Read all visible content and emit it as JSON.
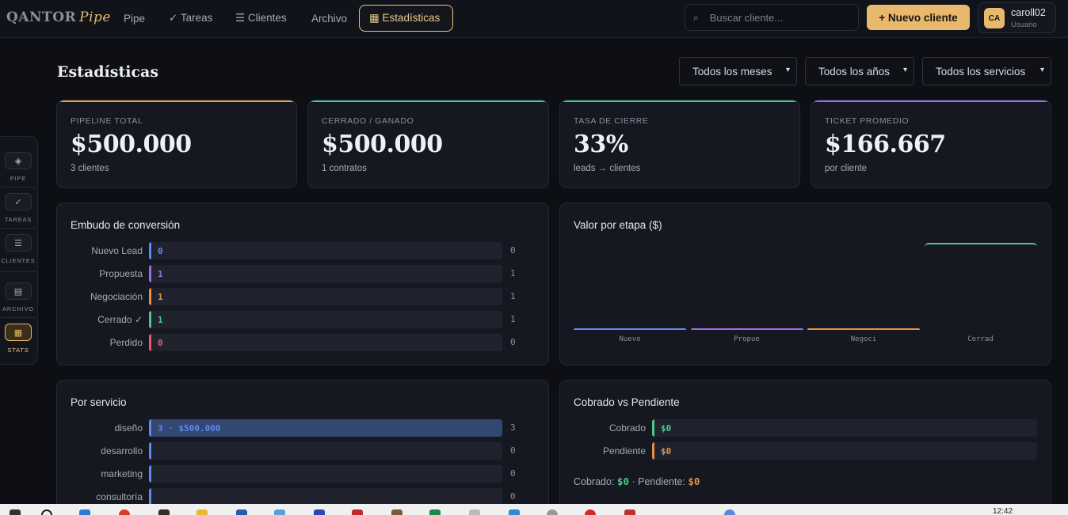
{
  "header": {
    "logo_main": "QANTOR",
    "logo_sub": "Pipe",
    "nav": [
      {
        "label": "Pipe"
      },
      {
        "label": "✓ Tareas"
      },
      {
        "label": "☰ Clientes"
      },
      {
        "label": "Archivo"
      },
      {
        "label": "▦ Estadísticas"
      }
    ],
    "search_placeholder": "Buscar cliente...",
    "new_button": "+ Nuevo cliente",
    "user": {
      "initials": "CA",
      "name": "caroll02",
      "role": "Usuario"
    }
  },
  "sidebar": {
    "items": [
      {
        "label": "PIPE",
        "icon": "◈"
      },
      {
        "label": "TAREAS",
        "icon": "✓"
      },
      {
        "label": "CLIENTES",
        "icon": "☰"
      },
      {
        "label": "ARCHIVO",
        "icon": "▤"
      },
      {
        "label": "STATS",
        "icon": "▦"
      }
    ]
  },
  "page": {
    "title": "Estadísticas",
    "filters": [
      {
        "value": "Todos los meses"
      },
      {
        "value": "Todos los años"
      },
      {
        "value": "Todos los servicios"
      }
    ]
  },
  "kpis": [
    {
      "label": "PIPELINE TOTAL",
      "value": "$500.000",
      "sub": "3 clientes",
      "color": "#e8a04a"
    },
    {
      "label": "CERRADO / GANADO",
      "value": "$500.000",
      "sub": "1 contratos",
      "color": "#3ec9a0"
    },
    {
      "label": "TASA DE CIERRE",
      "value": "33%",
      "sub": "leads → clientes",
      "color": "#3ec98a"
    },
    {
      "label": "TICKET PROMEDIO",
      "value": "$166.667",
      "sub": "por cliente",
      "color": "#9a6ee8"
    }
  ],
  "funnel": {
    "title": "Embudo de conversión",
    "rows": [
      {
        "label": "Nuevo Lead",
        "inner": "0",
        "count": "0",
        "fraction": 0,
        "color": "#5a8cf0"
      },
      {
        "label": "Propuesta",
        "inner": "1",
        "count": "1",
        "fraction": 0,
        "color": "#9a6ee8"
      },
      {
        "label": "Negociación",
        "inner": "1",
        "count": "1",
        "fraction": 0,
        "color": "#e89048"
      },
      {
        "label": "Cerrado ✓",
        "inner": "1",
        "count": "1",
        "fraction": 0,
        "color": "#4ec98a"
      },
      {
        "label": "Perdido",
        "inner": "0",
        "count": "0",
        "fraction": 0,
        "color": "#e85a6a"
      }
    ]
  },
  "chart_data": {
    "type": "bar",
    "title": "Valor por etapa ($)",
    "categories": [
      "Nuevo",
      "Propue",
      "Negoci",
      "Cerrad"
    ],
    "values": [
      0,
      0,
      0,
      500000
    ],
    "colors": [
      "#5a8cf0",
      "#9a6ee8",
      "#e89048",
      "#4ec98a"
    ],
    "ylim": [
      0,
      500000
    ]
  },
  "services": {
    "title": "Por servicio",
    "rows": [
      {
        "label": "diseño",
        "inner": "3 · $500.000",
        "count": "3",
        "fraction": 1,
        "color": "#5a8cf0"
      },
      {
        "label": "desarrollo",
        "inner": "",
        "count": "0",
        "fraction": 0,
        "color": "#5a8cf0"
      },
      {
        "label": "marketing",
        "inner": "",
        "count": "0",
        "fraction": 0,
        "color": "#5a8cf0"
      },
      {
        "label": "consultoría",
        "inner": "",
        "count": "0",
        "fraction": 0,
        "color": "#5a8cf0"
      }
    ]
  },
  "cobrado": {
    "title": "Cobrado vs Pendiente",
    "rows": [
      {
        "label": "Cobrado",
        "inner": "$0",
        "fraction": 0,
        "color": "#4ec98a"
      },
      {
        "label": "Pendiente",
        "inner": "$0",
        "fraction": 0,
        "color": "#e89048"
      }
    ],
    "summary_cobrado_label": "Cobrado:",
    "summary_cobrado_value": "$0",
    "summary_sep": "·",
    "summary_pendiente_label": "Pendiente:",
    "summary_pendiente_value": "$0"
  },
  "taskbar": {
    "time": "12:42"
  }
}
